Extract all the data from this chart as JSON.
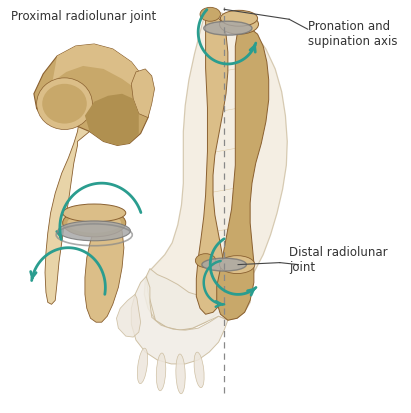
{
  "background_color": "#ffffff",
  "figsize": [
    4.11,
    4.14
  ],
  "dpi": 100,
  "bone_color": "#c8a86a",
  "bone_light": "#dbbe88",
  "bone_dark": "#8a6030",
  "bone_shadow": "#b09050",
  "bone_pale": "#e8d4a8",
  "skin_color": "#f0e8d8",
  "skin_edge": "#c8b898",
  "ligament_color": "#a8a8a8",
  "arrow_color": "#2a9d8f",
  "text_color": "#333333",
  "label_proximal": "Proximal radiolunar joint",
  "label_pronation": "Pronation and\nsupination axis",
  "label_distal": "Distal radiolunar\njoint",
  "label_fontsize": 8.5
}
